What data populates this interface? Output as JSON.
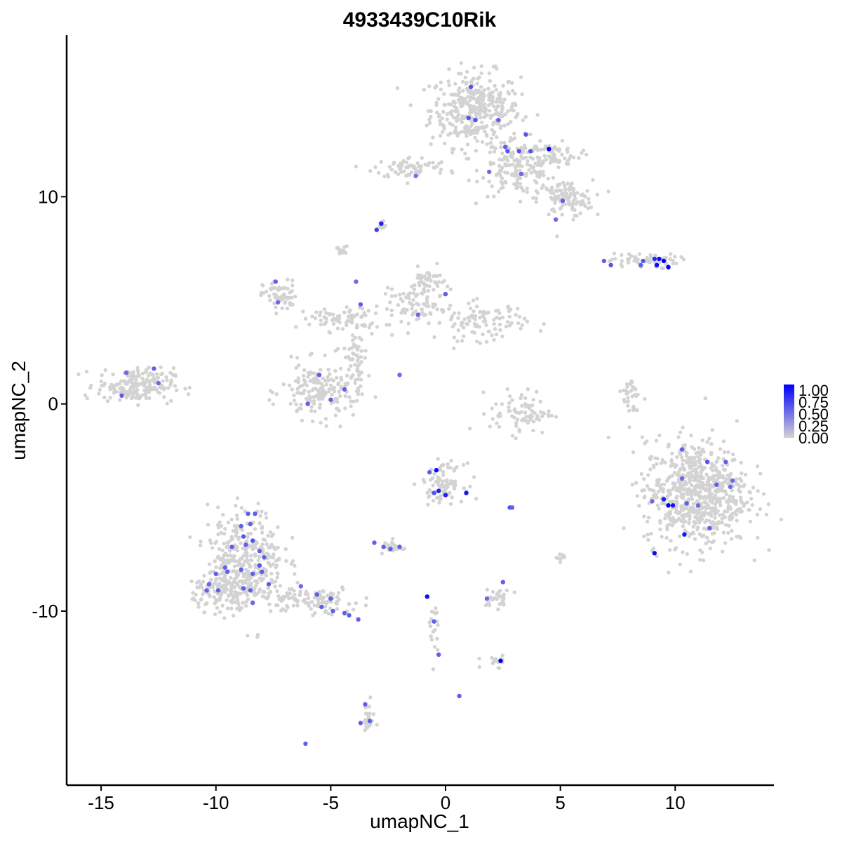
{
  "chart_data": {
    "type": "scatter",
    "title": "4933439C10Rik",
    "xlabel": "umapNC_1",
    "ylabel": "umapNC_2",
    "xlim": [
      -16.5,
      14.3
    ],
    "ylim": [
      -18.4,
      17.8
    ],
    "x_ticks": [
      -15,
      -10,
      -5,
      0,
      5,
      10
    ],
    "x_tick_labels": [
      "-15",
      "-10",
      "-5",
      "0",
      "5",
      "10"
    ],
    "y_ticks": [
      -10,
      0,
      10
    ],
    "y_tick_labels": [
      "-10",
      "0",
      "10"
    ],
    "grid": false,
    "legend_position": "right",
    "color_scale": {
      "low_color": "#d3d3d3",
      "high_color": "#0000ff",
      "breaks": [
        1.0,
        0.75,
        0.5,
        0.25,
        0.0
      ],
      "break_labels": [
        "1.00",
        "0.75",
        "0.50",
        "0.25",
        "0.00"
      ]
    },
    "clusters": [
      {
        "cx": 1.3,
        "cy": 14.2,
        "sx": 1.3,
        "sy": 1.2,
        "n": 360
      },
      {
        "cx": 3.2,
        "cy": 11.4,
        "sx": 1.1,
        "sy": 0.9,
        "n": 160
      },
      {
        "cx": 5.2,
        "cy": 9.9,
        "sx": 0.8,
        "sy": 0.6,
        "n": 110
      },
      {
        "cx": -1.5,
        "cy": 11.4,
        "sx": 1.1,
        "sy": 0.35,
        "n": 70
      },
      {
        "cx": 4.7,
        "cy": 12.0,
        "sx": 0.8,
        "sy": 0.4,
        "n": 60
      },
      {
        "cx": 8.6,
        "cy": 6.9,
        "sx": 1.0,
        "sy": 0.25,
        "n": 60
      },
      {
        "cx": -7.2,
        "cy": 5.2,
        "sx": 0.5,
        "sy": 0.5,
        "n": 60
      },
      {
        "cx": -4.5,
        "cy": 4.1,
        "sx": 1.2,
        "sy": 0.4,
        "n": 70
      },
      {
        "cx": -3.9,
        "cy": 2.3,
        "sx": 0.35,
        "sy": 1.2,
        "n": 60
      },
      {
        "cx": -1.2,
        "cy": 4.6,
        "sx": 1.1,
        "sy": 0.6,
        "n": 70
      },
      {
        "cx": 1.6,
        "cy": 4.0,
        "sx": 1.3,
        "sy": 0.6,
        "n": 100
      },
      {
        "cx": -0.8,
        "cy": 5.8,
        "sx": 0.5,
        "sy": 0.5,
        "n": 50
      },
      {
        "cx": -5.5,
        "cy": 0.6,
        "sx": 1.1,
        "sy": 0.9,
        "n": 170
      },
      {
        "cx": -13.5,
        "cy": 0.9,
        "sx": 1.1,
        "sy": 0.55,
        "n": 200
      },
      {
        "cx": 3.3,
        "cy": -0.4,
        "sx": 0.9,
        "sy": 0.7,
        "n": 80
      },
      {
        "cx": 8.1,
        "cy": 0.3,
        "sx": 0.25,
        "sy": 0.8,
        "n": 30
      },
      {
        "cx": 10.9,
        "cy": -4.3,
        "sx": 1.5,
        "sy": 1.7,
        "n": 700
      },
      {
        "cx": -8.7,
        "cy": -7.5,
        "sx": 1.1,
        "sy": 1.6,
        "n": 330
      },
      {
        "cx": -9.5,
        "cy": -9.0,
        "sx": 1.0,
        "sy": 0.6,
        "n": 140
      },
      {
        "cx": -6.0,
        "cy": -9.5,
        "sx": 1.5,
        "sy": 0.45,
        "n": 110
      },
      {
        "cx": -0.1,
        "cy": -3.8,
        "sx": 0.6,
        "sy": 0.6,
        "n": 90
      },
      {
        "cx": -2.3,
        "cy": -6.9,
        "sx": 0.3,
        "sy": 0.25,
        "n": 25
      },
      {
        "cx": 2.3,
        "cy": -9.4,
        "sx": 0.4,
        "sy": 0.3,
        "n": 30
      },
      {
        "cx": 2.2,
        "cy": -12.4,
        "sx": 0.4,
        "sy": 0.2,
        "n": 18
      },
      {
        "cx": -3.4,
        "cy": -15.2,
        "sx": 0.2,
        "sy": 0.5,
        "n": 22
      },
      {
        "cx": -0.5,
        "cy": -11.0,
        "sx": 0.2,
        "sy": 1.0,
        "n": 18
      },
      {
        "cx": -4.5,
        "cy": 7.4,
        "sx": 0.15,
        "sy": 0.2,
        "n": 12
      },
      {
        "cx": -2.8,
        "cy": 8.6,
        "sx": 0.15,
        "sy": 0.15,
        "n": 10
      },
      {
        "cx": 5.0,
        "cy": -7.5,
        "sx": 0.1,
        "sy": 0.25,
        "n": 10
      }
    ],
    "expressing_points": [
      {
        "x": 1.1,
        "y": 15.3,
        "v": 0.6
      },
      {
        "x": 1.0,
        "y": 13.8,
        "v": 0.6
      },
      {
        "x": 1.3,
        "y": 13.7,
        "v": 0.6
      },
      {
        "x": 2.3,
        "y": 13.7,
        "v": 0.55
      },
      {
        "x": 3.5,
        "y": 13.0,
        "v": 0.6
      },
      {
        "x": 2.6,
        "y": 12.4,
        "v": 0.55
      },
      {
        "x": 2.7,
        "y": 12.2,
        "v": 0.6
      },
      {
        "x": 3.2,
        "y": 12.2,
        "v": 0.6
      },
      {
        "x": 3.7,
        "y": 12.2,
        "v": 0.6
      },
      {
        "x": 4.5,
        "y": 12.3,
        "v": 1.0
      },
      {
        "x": 3.3,
        "y": 11.1,
        "v": 0.5
      },
      {
        "x": 1.9,
        "y": 11.2,
        "v": 0.5
      },
      {
        "x": 5.1,
        "y": 9.8,
        "v": 0.55
      },
      {
        "x": 4.8,
        "y": 8.9,
        "v": 0.5
      },
      {
        "x": -3.0,
        "y": 8.4,
        "v": 0.7
      },
      {
        "x": -2.8,
        "y": 8.7,
        "v": 0.85
      },
      {
        "x": -1.3,
        "y": 11.0,
        "v": 0.45
      },
      {
        "x": -7.4,
        "y": 5.9,
        "v": 0.55
      },
      {
        "x": -7.3,
        "y": 4.9,
        "v": 0.5
      },
      {
        "x": -3.9,
        "y": 5.9,
        "v": 0.5
      },
      {
        "x": -3.7,
        "y": 4.8,
        "v": 0.55
      },
      {
        "x": -1.2,
        "y": 4.3,
        "v": 0.5
      },
      {
        "x": 0.0,
        "y": 5.3,
        "v": 0.55
      },
      {
        "x": -5.5,
        "y": 1.4,
        "v": 0.55
      },
      {
        "x": -4.4,
        "y": 0.7,
        "v": 0.55
      },
      {
        "x": -5.0,
        "y": 0.2,
        "v": 0.55
      },
      {
        "x": -6.0,
        "y": 0.0,
        "v": 0.55
      },
      {
        "x": -2.0,
        "y": 1.4,
        "v": 0.5
      },
      {
        "x": -13.9,
        "y": 1.5,
        "v": 0.5
      },
      {
        "x": -12.7,
        "y": 1.7,
        "v": 0.55
      },
      {
        "x": -12.5,
        "y": 1.0,
        "v": 0.5
      },
      {
        "x": -14.1,
        "y": 0.4,
        "v": 0.55
      },
      {
        "x": 6.9,
        "y": 6.9,
        "v": 0.55
      },
      {
        "x": 7.2,
        "y": 6.7,
        "v": 0.6
      },
      {
        "x": 8.6,
        "y": 6.9,
        "v": 0.6
      },
      {
        "x": 8.5,
        "y": 6.7,
        "v": 0.55
      },
      {
        "x": 9.1,
        "y": 7.0,
        "v": 0.8
      },
      {
        "x": 9.3,
        "y": 7.0,
        "v": 0.95
      },
      {
        "x": 9.5,
        "y": 6.9,
        "v": 1.0
      },
      {
        "x": 9.2,
        "y": 6.7,
        "v": 0.95
      },
      {
        "x": 9.7,
        "y": 6.6,
        "v": 1.0
      },
      {
        "x": 10.3,
        "y": -2.2,
        "v": 0.55
      },
      {
        "x": 11.4,
        "y": -2.8,
        "v": 0.6
      },
      {
        "x": 12.2,
        "y": -2.8,
        "v": 0.55
      },
      {
        "x": 10.3,
        "y": -3.6,
        "v": 0.5
      },
      {
        "x": 11.8,
        "y": -3.9,
        "v": 0.55
      },
      {
        "x": 12.5,
        "y": -3.7,
        "v": 0.5
      },
      {
        "x": 9.5,
        "y": -4.6,
        "v": 0.85
      },
      {
        "x": 9.7,
        "y": -4.9,
        "v": 1.0
      },
      {
        "x": 9.9,
        "y": -4.9,
        "v": 0.9
      },
      {
        "x": 9.0,
        "y": -4.7,
        "v": 0.5
      },
      {
        "x": 10.5,
        "y": -4.8,
        "v": 0.55
      },
      {
        "x": 11.0,
        "y": -4.9,
        "v": 0.5
      },
      {
        "x": 12.4,
        "y": -4.0,
        "v": 0.5
      },
      {
        "x": 11.5,
        "y": -6.0,
        "v": 0.55
      },
      {
        "x": 10.4,
        "y": -6.3,
        "v": 0.9
      },
      {
        "x": 9.1,
        "y": -7.2,
        "v": 0.95
      },
      {
        "x": -8.6,
        "y": -5.3,
        "v": 0.55
      },
      {
        "x": -8.3,
        "y": -5.3,
        "v": 0.55
      },
      {
        "x": -8.9,
        "y": -5.9,
        "v": 0.55
      },
      {
        "x": -8.5,
        "y": -5.8,
        "v": 0.55
      },
      {
        "x": -8.8,
        "y": -6.4,
        "v": 0.6
      },
      {
        "x": -8.4,
        "y": -6.6,
        "v": 0.6
      },
      {
        "x": -8.7,
        "y": -6.8,
        "v": 0.55
      },
      {
        "x": -9.3,
        "y": -6.9,
        "v": 0.55
      },
      {
        "x": -8.1,
        "y": -7.1,
        "v": 0.55
      },
      {
        "x": -7.9,
        "y": -7.4,
        "v": 0.55
      },
      {
        "x": -8.1,
        "y": -7.8,
        "v": 0.6
      },
      {
        "x": -8.0,
        "y": -8.1,
        "v": 0.55
      },
      {
        "x": -8.4,
        "y": -8.2,
        "v": 0.55
      },
      {
        "x": -8.9,
        "y": -8.0,
        "v": 0.55
      },
      {
        "x": -9.5,
        "y": -8.1,
        "v": 0.55
      },
      {
        "x": -9.6,
        "y": -7.9,
        "v": 0.55
      },
      {
        "x": -10.0,
        "y": -8.2,
        "v": 0.55
      },
      {
        "x": -10.3,
        "y": -8.7,
        "v": 0.5
      },
      {
        "x": -10.4,
        "y": -9.0,
        "v": 0.55
      },
      {
        "x": -9.9,
        "y": -9.0,
        "v": 0.55
      },
      {
        "x": -8.8,
        "y": -8.9,
        "v": 0.55
      },
      {
        "x": -8.5,
        "y": -9.0,
        "v": 0.55
      },
      {
        "x": -8.4,
        "y": -9.6,
        "v": 0.5
      },
      {
        "x": -7.7,
        "y": -8.7,
        "v": 0.55
      },
      {
        "x": -6.3,
        "y": -8.8,
        "v": 0.5
      },
      {
        "x": -5.6,
        "y": -9.2,
        "v": 0.55
      },
      {
        "x": -5.0,
        "y": -9.4,
        "v": 0.55
      },
      {
        "x": -5.4,
        "y": -9.8,
        "v": 0.55
      },
      {
        "x": -4.9,
        "y": -10.0,
        "v": 0.55
      },
      {
        "x": -4.4,
        "y": -10.1,
        "v": 0.55
      },
      {
        "x": -4.2,
        "y": -10.2,
        "v": 0.55
      },
      {
        "x": -3.8,
        "y": -10.4,
        "v": 0.55
      },
      {
        "x": -0.4,
        "y": -3.2,
        "v": 0.95
      },
      {
        "x": -0.7,
        "y": -3.3,
        "v": 0.55
      },
      {
        "x": -0.3,
        "y": -4.2,
        "v": 0.85
      },
      {
        "x": -0.5,
        "y": -4.3,
        "v": 0.6
      },
      {
        "x": 0.0,
        "y": -4.4,
        "v": 0.85
      },
      {
        "x": 0.9,
        "y": -4.3,
        "v": 0.9
      },
      {
        "x": 2.8,
        "y": -5.0,
        "v": 0.6
      },
      {
        "x": 2.9,
        "y": -5.0,
        "v": 0.55
      },
      {
        "x": -3.1,
        "y": -6.7,
        "v": 0.55
      },
      {
        "x": -2.7,
        "y": -6.9,
        "v": 0.55
      },
      {
        "x": -2.4,
        "y": -7.0,
        "v": 0.55
      },
      {
        "x": -2.0,
        "y": -6.9,
        "v": 0.55
      },
      {
        "x": -0.8,
        "y": -9.3,
        "v": 0.95
      },
      {
        "x": -0.5,
        "y": -10.5,
        "v": 0.55
      },
      {
        "x": -0.3,
        "y": -12.1,
        "v": 0.55
      },
      {
        "x": 1.8,
        "y": -9.4,
        "v": 0.5
      },
      {
        "x": 2.5,
        "y": -8.6,
        "v": 0.55
      },
      {
        "x": 2.4,
        "y": -12.4,
        "v": 1.0
      },
      {
        "x": 0.6,
        "y": -14.1,
        "v": 0.55
      },
      {
        "x": -3.5,
        "y": -14.5,
        "v": 0.55
      },
      {
        "x": -3.7,
        "y": -15.4,
        "v": 0.55
      },
      {
        "x": -3.3,
        "y": -15.3,
        "v": 0.55
      },
      {
        "x": -6.1,
        "y": -16.4,
        "v": 0.55
      }
    ]
  }
}
